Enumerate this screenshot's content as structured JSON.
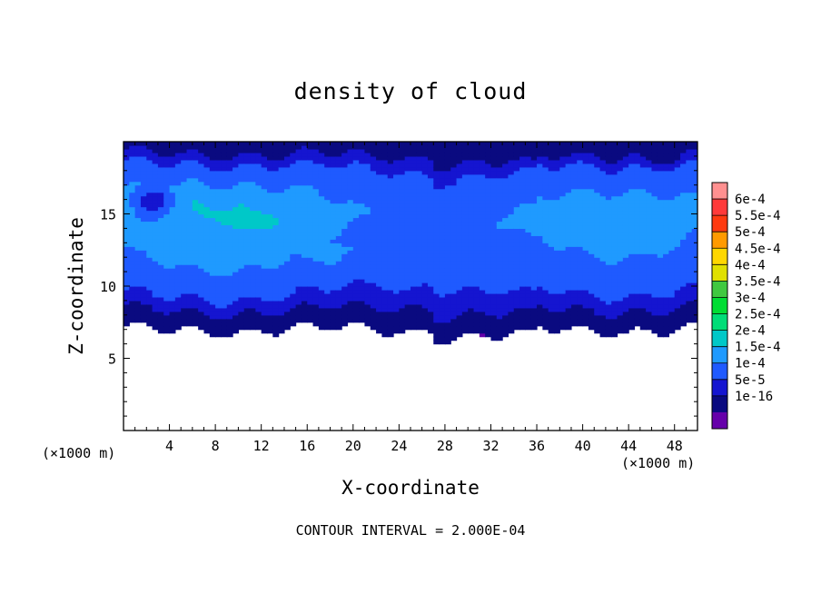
{
  "chart_data": {
    "type": "heatmap",
    "title": "density of cloud",
    "xlabel": "X-coordinate",
    "ylabel": "Z-coordinate",
    "x_unit_left": "(×1000 m)",
    "x_unit_right": "(×1000 m)",
    "footer": "CONTOUR INTERVAL = 2.000E-04",
    "xlim": [
      0,
      50
    ],
    "ylim": [
      0,
      20
    ],
    "x_ticks": [
      4,
      8,
      12,
      16,
      20,
      24,
      28,
      32,
      36,
      40,
      44,
      48
    ],
    "y_ticks": [
      5,
      10,
      15
    ],
    "x_tick_labels": [
      "4",
      "8",
      "12",
      "16",
      "20",
      "24",
      "28",
      "32",
      "36",
      "40",
      "44",
      "48"
    ],
    "y_tick_labels": [
      "5",
      "10",
      "15"
    ],
    "colorbar": {
      "labels": [
        "6e-4",
        "5.5e-4",
        "5e-4",
        "4.5e-4",
        "4e-4",
        "3.5e-4",
        "3e-4",
        "2.5e-4",
        "2e-4",
        "1.5e-4",
        "1e-4",
        "5e-5",
        "1e-16"
      ],
      "colors": [
        "#ff9090",
        "#ff3a3a",
        "#ff3a10",
        "#ff9a00",
        "#ffd700",
        "#e0e000",
        "#40c840",
        "#00dd33",
        "#00dd77",
        "#00c8c8",
        "#1f9aff",
        "#1f5aff",
        "#1515d0",
        "#0a0a80",
        "#6600aa"
      ]
    },
    "field": {
      "cloud_base_z": 7.0,
      "cloud_top_z": 19.7,
      "z_levels": [
        7.0,
        7.6,
        8.5,
        9.0,
        9.8,
        10.5,
        11.5,
        13.0,
        15.0,
        16.5,
        18.0,
        18.8,
        19.5
      ],
      "z_values": [
        1e-08,
        2e-05,
        5e-05,
        8e-05,
        0.0001,
        0.000115,
        0.00013,
        0.000145,
        0.00016,
        0.00014,
        0.00011,
        7e-05,
        2e-05
      ]
    }
  }
}
